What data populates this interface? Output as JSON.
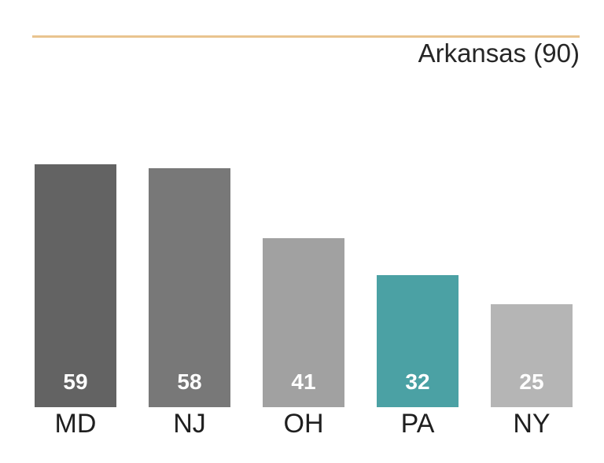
{
  "chart_data": {
    "type": "bar",
    "title": "",
    "xlabel": "",
    "ylabel": "",
    "categories": [
      "MD",
      "NJ",
      "OH",
      "PA",
      "NY"
    ],
    "values": [
      59,
      58,
      41,
      32,
      25
    ],
    "ylim": [
      0,
      90
    ],
    "grid": false,
    "legend": false,
    "bar_colors": [
      "#636363",
      "#787878",
      "#a1a1a1",
      "#4ba1a4",
      "#b5b5b5"
    ],
    "highlight_index": 3,
    "highlight_color": "#4ba1a4",
    "value_label_color": "#ffffff",
    "category_label_color": "#1f1f1f",
    "reference_line": {
      "label": "Arkansas (90)",
      "value": 90,
      "color": "#e9c48f",
      "label_color": "#262626"
    }
  }
}
